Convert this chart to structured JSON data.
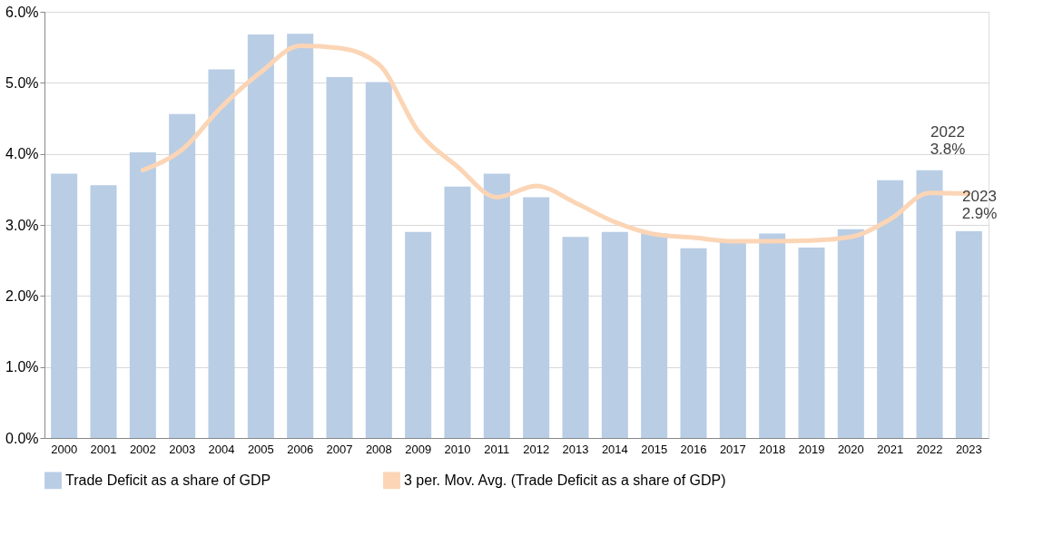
{
  "chart_data": {
    "type": "bar",
    "categories": [
      "2000",
      "2001",
      "2002",
      "2003",
      "2004",
      "2005",
      "2006",
      "2007",
      "2008",
      "2009",
      "2010",
      "2011",
      "2012",
      "2013",
      "2014",
      "2015",
      "2016",
      "2017",
      "2018",
      "2019",
      "2020",
      "2021",
      "2022",
      "2023"
    ],
    "series": [
      {
        "name": "Trade Deficit as a share of GDP",
        "color": "#b9cde5",
        "values": [
          3.72,
          3.56,
          4.02,
          4.56,
          5.19,
          5.68,
          5.69,
          5.08,
          5.01,
          2.9,
          3.54,
          3.72,
          3.39,
          2.83,
          2.9,
          2.88,
          2.67,
          2.77,
          2.88,
          2.68,
          2.94,
          3.63,
          3.77,
          2.91
        ]
      },
      {
        "name": "3 per. Mov. Avg. (Trade Deficit as a share of GDP)",
        "type": "line",
        "color": "#fbd5b5",
        "values": [
          null,
          null,
          3.77,
          4.06,
          4.66,
          5.15,
          5.52,
          5.49,
          5.26,
          4.32,
          3.82,
          3.39,
          3.55,
          3.31,
          3.04,
          2.87,
          2.82,
          2.77,
          2.77,
          2.78,
          2.83,
          3.08,
          3.45,
          3.44
        ]
      }
    ],
    "ylim": [
      0,
      6
    ],
    "yticks": [
      {
        "value": 0,
        "label": "0.0%"
      },
      {
        "value": 1,
        "label": "1.0%"
      },
      {
        "value": 2,
        "label": "2.0%"
      },
      {
        "value": 3,
        "label": "3.0%"
      },
      {
        "value": 4,
        "label": "4.0%"
      },
      {
        "value": 5,
        "label": "5.0%"
      },
      {
        "value": 6,
        "label": "6.0%"
      }
    ],
    "grid": "y",
    "legend": "bottom",
    "marker": "none",
    "line_style": "solid",
    "annotations": [
      "2022\n3.8%",
      "2023\n2.9%"
    ]
  }
}
